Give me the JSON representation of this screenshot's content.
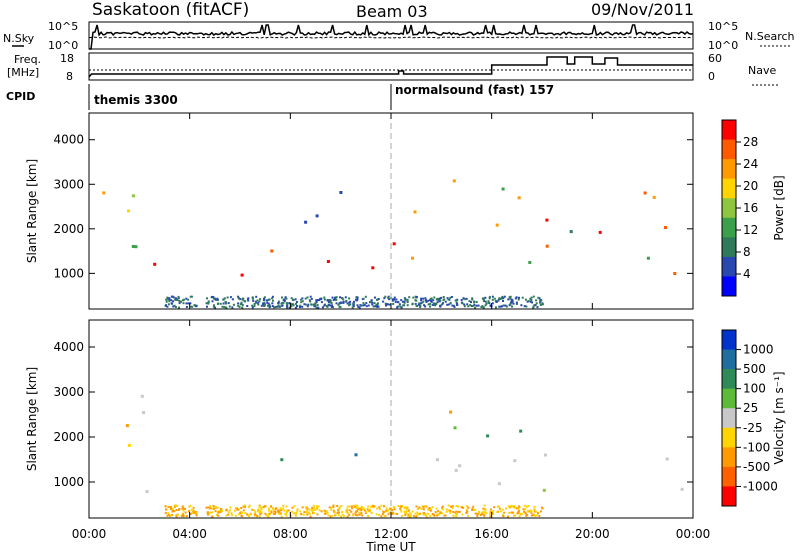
{
  "header": {
    "station": "Saskatoon (fitACF)",
    "beam": "Beam 03",
    "date": "09/Nov/2011"
  },
  "sky_panel": {
    "left_label": "N.Sky",
    "right_label": "N.Search",
    "ticks_left": [
      "10^5",
      "10^0"
    ],
    "ticks_right": [
      "10^5",
      "10^0"
    ]
  },
  "freq_panel": {
    "left_label_line1": "Freq.",
    "left_label_line2": "[MHz]",
    "right_label": "Nave",
    "ticks_left": [
      "18",
      "8"
    ],
    "ticks_right": [
      "60",
      "0"
    ]
  },
  "cpid_panel": {
    "label": "CPID",
    "segments": [
      {
        "name": "themis 3300",
        "start_hour": 0
      },
      {
        "name": "normalsound (fast) 157",
        "start_hour": 12
      }
    ]
  },
  "axes": {
    "ylabel": "Slant Range [km]",
    "xlabel": "Time UT",
    "yticks": [
      "1000",
      "2000",
      "3000",
      "4000"
    ],
    "xticks": [
      "00:00",
      "04:00",
      "08:00",
      "12:00",
      "16:00",
      "20:00",
      "00:00"
    ]
  },
  "power_colorbar": {
    "label": "Power [dB]",
    "ticks": [
      "28",
      "24",
      "20",
      "16",
      "12",
      "8",
      "4"
    ],
    "colors": [
      "#ff0000",
      "#ff5a00",
      "#ff9a00",
      "#ffd400",
      "#8ec63f",
      "#3aa04a",
      "#2f7a5a",
      "#2848b0",
      "#0000ff"
    ]
  },
  "velocity_colorbar": {
    "label": "Velocity [m s⁻¹]",
    "ticks": [
      "1000",
      "500",
      "100",
      "25",
      "-25",
      "-100",
      "-500",
      "-1000"
    ],
    "colors": [
      "#0033cc",
      "#1e6ea0",
      "#2e8b57",
      "#5dbb3a",
      "#c8c8c8",
      "#ffd400",
      "#ff9a00",
      "#ff6000",
      "#ff0000"
    ]
  },
  "chart_data": [
    {
      "type": "heatmap",
      "title": "Power",
      "x_range_hours": [
        0,
        24
      ],
      "ylim": [
        200,
        4600
      ],
      "colorbar": "Power [dB]",
      "gaps_hours": [
        [
          4.3,
          4.6
        ],
        [
          18.2,
          18.6
        ]
      ],
      "echo_regions": [
        {
          "t0": 0.1,
          "t1": 3.6,
          "r0": 700,
          "r1": 1900,
          "level": "orange-red"
        },
        {
          "t0": 0.2,
          "t1": 3.5,
          "r0": 2000,
          "r1": 3300,
          "level": "orange"
        },
        {
          "t0": 5.0,
          "t1": 11.5,
          "r0": 900,
          "r1": 1800,
          "level": "red"
        },
        {
          "t0": 8.5,
          "t1": 12.5,
          "r0": 2100,
          "r1": 3400,
          "level": "blue"
        },
        {
          "t0": 12.0,
          "t1": 18.2,
          "r0": 800,
          "r1": 3300,
          "level": "orange-red"
        },
        {
          "t0": 18.6,
          "t1": 24.0,
          "r0": 800,
          "r1": 3000,
          "level": "orange-red"
        }
      ]
    },
    {
      "type": "heatmap",
      "title": "Velocity",
      "x_range_hours": [
        0,
        24
      ],
      "ylim": [
        200,
        4600
      ],
      "colorbar": "Velocity [m s⁻¹]",
      "gaps_hours": [
        [
          4.3,
          4.6
        ],
        [
          18.2,
          18.6
        ]
      ],
      "echo_regions": [
        {
          "t0": 0.1,
          "t1": 3.6,
          "r0": 700,
          "r1": 1100,
          "level": "grey"
        },
        {
          "t0": 0.3,
          "t1": 3.5,
          "r0": 1300,
          "r1": 3300,
          "level": "orange"
        },
        {
          "t0": 5.0,
          "t1": 11.5,
          "r0": 1200,
          "r1": 1800,
          "level": "green-orange"
        },
        {
          "t0": 12.5,
          "t1": 24.0,
          "r0": 700,
          "r1": 2000,
          "level": "grey"
        },
        {
          "t0": 13.0,
          "t1": 18.0,
          "r0": 2000,
          "r1": 3200,
          "level": "green-orange"
        }
      ]
    }
  ]
}
